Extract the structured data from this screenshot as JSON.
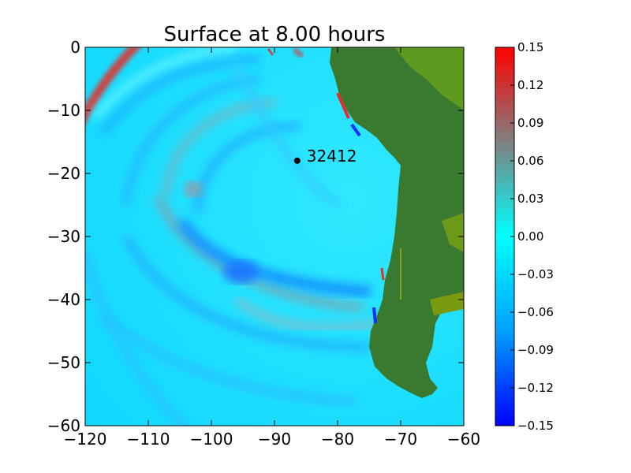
{
  "chart_data": {
    "type": "heatmap",
    "title": "Surface at 8.00 hours",
    "xlabel": "",
    "ylabel": "",
    "xlim": [
      -120,
      -60
    ],
    "ylim": [
      -60,
      0
    ],
    "x_ticks": [
      "−120",
      "−110",
      "−100",
      "−90",
      "−80",
      "−70",
      "−60"
    ],
    "y_ticks": [
      "0",
      "−10",
      "−20",
      "−30",
      "−40",
      "−50",
      "−60"
    ],
    "colorbar": {
      "range": [
        -0.15,
        0.15
      ],
      "ticks": [
        "0.15",
        "0.12",
        "0.09",
        "0.06",
        "0.03",
        "0.00",
        "−0.03",
        "−0.06",
        "−0.09",
        "−0.12",
        "−0.15"
      ],
      "colors": [
        "#0000ff",
        "#00a0ff",
        "#00ffff",
        "#808080",
        "#ff0000"
      ]
    },
    "annotations": [
      {
        "label": "32412",
        "x": -86.4,
        "y": -17.98
      }
    ],
    "land_colors": [
      "#3a7a30",
      "#7a9a10"
    ]
  }
}
